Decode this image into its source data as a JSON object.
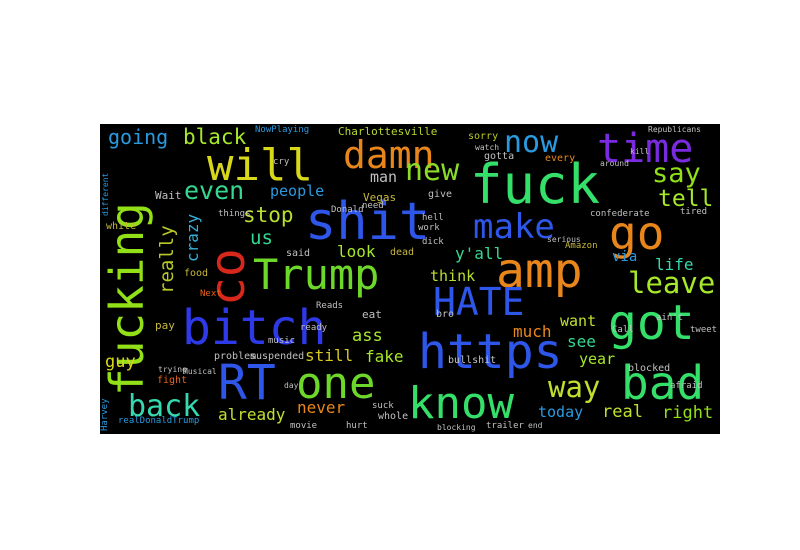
{
  "words": [
    {
      "text": "will",
      "color": "#d8d81a"
    },
    {
      "text": "damn",
      "color": "#e8861c"
    },
    {
      "text": "fuck",
      "color": "#34e06a"
    },
    {
      "text": "time",
      "color": "#7a2be0"
    },
    {
      "text": "now",
      "color": "#2a9ae0"
    },
    {
      "text": "new",
      "color": "#8adc28"
    },
    {
      "text": "say",
      "color": "#92e018"
    },
    {
      "text": "tell",
      "color": "#a6e82a"
    },
    {
      "text": "going",
      "color": "#2a9ae0"
    },
    {
      "text": "black",
      "color": "#a6e82a"
    },
    {
      "text": "even",
      "color": "#36d890"
    },
    {
      "text": "shit",
      "color": "#2e56e8"
    },
    {
      "text": "make",
      "color": "#2e56e8"
    },
    {
      "text": "go",
      "color": "#e8861c"
    },
    {
      "text": "co",
      "color": "#d8281c"
    },
    {
      "text": "fucking",
      "color": "#92e018"
    },
    {
      "text": "Trump",
      "color": "#6ed82a"
    },
    {
      "text": "amp",
      "color": "#e8861c"
    },
    {
      "text": "HATE",
      "color": "#2e56e8"
    },
    {
      "text": "leave",
      "color": "#a6e82a"
    },
    {
      "text": "bitch",
      "color": "#2e3ae8"
    },
    {
      "text": "got",
      "color": "#34e06a"
    },
    {
      "text": "https",
      "color": "#2e56e8"
    },
    {
      "text": "RT",
      "color": "#2e56e8"
    },
    {
      "text": "one",
      "color": "#6ed82a"
    },
    {
      "text": "know",
      "color": "#34e06a"
    },
    {
      "text": "way",
      "color": "#c0e030"
    },
    {
      "text": "bad",
      "color": "#34e06a"
    },
    {
      "text": "back",
      "color": "#36d8b0"
    },
    {
      "text": "stop",
      "color": "#b8e030"
    },
    {
      "text": "people",
      "color": "#2a9ae0"
    },
    {
      "text": "us",
      "color": "#36d890"
    },
    {
      "text": "really",
      "color": "#b8c828"
    },
    {
      "text": "crazy",
      "color": "#36b0d8"
    },
    {
      "text": "man",
      "color": "#c0c0c0"
    },
    {
      "text": "look",
      "color": "#a6e82a"
    },
    {
      "text": "y'all",
      "color": "#36d890"
    },
    {
      "text": "think",
      "color": "#b8e030"
    },
    {
      "text": "life",
      "color": "#36d8b0"
    },
    {
      "text": "via",
      "color": "#2a9ae0"
    },
    {
      "text": "guy",
      "color": "#d8d81a"
    },
    {
      "text": "ass",
      "color": "#a6e82a"
    },
    {
      "text": "still",
      "color": "#d8c820"
    },
    {
      "text": "fake",
      "color": "#a6e82a"
    },
    {
      "text": "much",
      "color": "#e8861c"
    },
    {
      "text": "want",
      "color": "#c0e030"
    },
    {
      "text": "see",
      "color": "#36d890"
    },
    {
      "text": "year",
      "color": "#a6e82a"
    },
    {
      "text": "already",
      "color": "#c0e030"
    },
    {
      "text": "never",
      "color": "#e8861c"
    },
    {
      "text": "today",
      "color": "#2a9ae0"
    },
    {
      "text": "real",
      "color": "#c0e030"
    },
    {
      "text": "right",
      "color": "#92e018"
    },
    {
      "text": "Charlottesville",
      "color": "#b8d830"
    },
    {
      "text": "sorry",
      "color": "#b8c828"
    },
    {
      "text": "gotta",
      "color": "#c0c0c0"
    },
    {
      "text": "every",
      "color": "#e8861c"
    },
    {
      "text": "Vegas",
      "color": "#c8b83c"
    },
    {
      "text": "Donald",
      "color": "#c0c0c0"
    },
    {
      "text": "give",
      "color": "#c0c0c0"
    },
    {
      "text": "things",
      "color": "#c0c0c0"
    },
    {
      "text": "white",
      "color": "#c8b83c"
    },
    {
      "text": "food",
      "color": "#c8b83c"
    },
    {
      "text": "pay",
      "color": "#c8b83c"
    },
    {
      "text": "fight",
      "color": "#e8621c"
    },
    {
      "text": "Harvey",
      "color": "#2a9ae0"
    },
    {
      "text": "realDonaldTrump",
      "color": "#2a9ae0"
    },
    {
      "text": "trying",
      "color": "#c0c0c0"
    },
    {
      "text": "problem",
      "color": "#c0c0c0"
    },
    {
      "text": "suspended",
      "color": "#c0c0c0"
    },
    {
      "text": "said",
      "color": "#c0c0c0"
    },
    {
      "text": "dead",
      "color": "#c8b83c"
    },
    {
      "text": "dick",
      "color": "#c0c0c0"
    },
    {
      "text": "work",
      "color": "#c0c0c0"
    },
    {
      "text": "hell",
      "color": "#c0c0c0"
    },
    {
      "text": "bullshit",
      "color": "#c0c0c0"
    },
    {
      "text": "blocked",
      "color": "#c0c0c0"
    },
    {
      "text": "tweet",
      "color": "#c0c0c0"
    },
    {
      "text": "ain't",
      "color": "#c0c0c0"
    },
    {
      "text": "Call",
      "color": "#c0c0c0"
    },
    {
      "text": "Amazon",
      "color": "#c8b83c"
    },
    {
      "text": "confederate",
      "color": "#c0c0c0"
    },
    {
      "text": "tired",
      "color": "#c0c0c0"
    },
    {
      "text": "serious",
      "color": "#c0c0c0"
    },
    {
      "text": "eat",
      "color": "#c0c0c0"
    },
    {
      "text": "ready",
      "color": "#c0c0c0"
    },
    {
      "text": "music",
      "color": "#c0c0c0"
    },
    {
      "text": "Musical",
      "color": "#c0c0c0"
    },
    {
      "text": "movie",
      "color": "#c0c0c0"
    },
    {
      "text": "hurt",
      "color": "#c0c0c0"
    },
    {
      "text": "whole",
      "color": "#c0c0c0"
    },
    {
      "text": "trailer",
      "color": "#c0c0c0"
    },
    {
      "text": "suck",
      "color": "#c0c0c0"
    },
    {
      "text": "bro",
      "color": "#c0c0c0"
    },
    {
      "text": "Next",
      "color": "#e8621c"
    },
    {
      "text": "NowPlaying",
      "color": "#2a9ae0"
    },
    {
      "text": "Wait",
      "color": "#c0c0c0"
    },
    {
      "text": "cry",
      "color": "#c0c0c0"
    },
    {
      "text": "kill",
      "color": "#c0c0c0"
    },
    {
      "text": "Reads",
      "color": "#c0c0c0"
    },
    {
      "text": "afraid",
      "color": "#c0c0c0"
    },
    {
      "text": "day",
      "color": "#c0c0c0"
    },
    {
      "text": "need",
      "color": "#c0c0c0"
    },
    {
      "text": "watch",
      "color": "#c0c0c0"
    },
    {
      "text": "around",
      "color": "#c0c0c0"
    },
    {
      "text": "Republicans",
      "color": "#c0c0c0"
    },
    {
      "text": "different",
      "color": "#2a9ae0"
    },
    {
      "text": "blocking",
      "color": "#c0c0c0"
    },
    {
      "text": "end",
      "color": "#c0c0c0"
    }
  ]
}
